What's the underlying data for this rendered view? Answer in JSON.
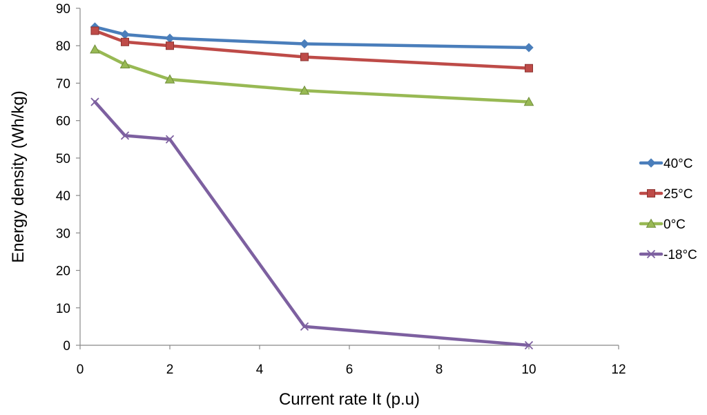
{
  "chart_data": {
    "type": "line",
    "title": "",
    "xlabel": "Current rate It (p.u)",
    "ylabel": "Energy density (Wh/kg)",
    "xlim": [
      0,
      12
    ],
    "ylim": [
      0,
      90
    ],
    "xticks": [
      0,
      2,
      4,
      6,
      8,
      10,
      12
    ],
    "yticks": [
      0,
      10,
      20,
      30,
      40,
      50,
      60,
      70,
      80,
      90
    ],
    "grid": false,
    "legend_position": "right",
    "x": [
      0.33,
      1,
      2,
      5,
      10
    ],
    "series": [
      {
        "name": "40°C",
        "color": "#4a7ebb",
        "marker": "diamond",
        "values": [
          85,
          83,
          82,
          80.5,
          79.5
        ]
      },
      {
        "name": "25°C",
        "color": "#be4b48",
        "marker": "square",
        "values": [
          84,
          81,
          80,
          77,
          74
        ]
      },
      {
        "name": "0°C",
        "color": "#98b954",
        "marker": "triangle",
        "values": [
          79,
          75,
          71,
          68,
          65
        ]
      },
      {
        "name": "-18°C",
        "color": "#7d60a0",
        "marker": "x",
        "values": [
          65,
          56,
          55,
          5,
          0
        ]
      }
    ]
  }
}
